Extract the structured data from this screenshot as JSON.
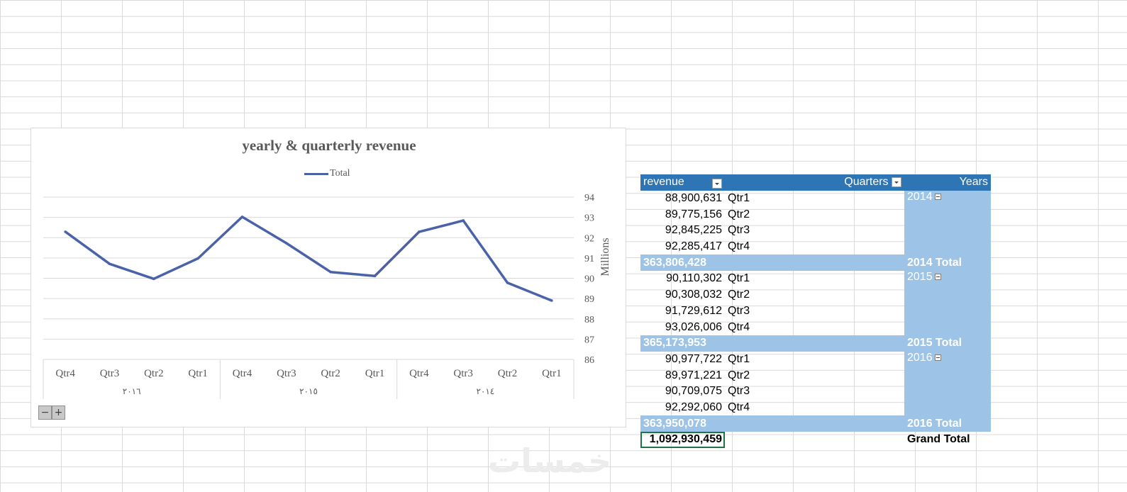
{
  "chart_data": {
    "type": "line",
    "title": "yearly & quarterly revenue",
    "legend": [
      "Total"
    ],
    "legend_position": "top",
    "ylabel": "Millions",
    "y_axis_position": "right",
    "ylim": [
      86,
      94
    ],
    "yticks": [
      "86",
      "87",
      "88",
      "89",
      "90",
      "91",
      "92",
      "93",
      "94"
    ],
    "grid": true,
    "x_direction": "right-to-left",
    "categories": [
      "Qtr4",
      "Qtr3",
      "Qtr2",
      "Qtr1",
      "Qtr4",
      "Qtr3",
      "Qtr2",
      "Qtr1",
      "Qtr4",
      "Qtr3",
      "Qtr2",
      "Qtr1"
    ],
    "groups": [
      {
        "label": "٢٠١٦",
        "count": 4
      },
      {
        "label": "٢٠١٥",
        "count": 4
      },
      {
        "label": "٢٠١٤",
        "count": 4
      }
    ],
    "series": [
      {
        "name": "Total",
        "color": "#4a62a8",
        "values": [
          92.29206,
          90.709075,
          89.971221,
          90.977722,
          93.026006,
          91.729612,
          90.308032,
          90.110302,
          92.285417,
          92.845225,
          89.775156,
          88.900631
        ]
      }
    ]
  },
  "chart_controls": {
    "collapse": "−",
    "expand": "+"
  },
  "pivot": {
    "headers": {
      "values": "revenue",
      "quarters": "Quarters",
      "years": "Years"
    },
    "years": [
      {
        "year": "2014",
        "rows": [
          {
            "value": "88,900,631",
            "quarter": "Qtr1"
          },
          {
            "value": "89,775,156",
            "quarter": "Qtr2"
          },
          {
            "value": "92,845,225",
            "quarter": "Qtr3"
          },
          {
            "value": "92,285,417",
            "quarter": "Qtr4"
          }
        ],
        "total": "363,806,428",
        "total_label": "2014 Total"
      },
      {
        "year": "2015",
        "rows": [
          {
            "value": "90,110,302",
            "quarter": "Qtr1"
          },
          {
            "value": "90,308,032",
            "quarter": "Qtr2"
          },
          {
            "value": "91,729,612",
            "quarter": "Qtr3"
          },
          {
            "value": "93,026,006",
            "quarter": "Qtr4"
          }
        ],
        "total": "365,173,953",
        "total_label": "2015 Total"
      },
      {
        "year": "2016",
        "rows": [
          {
            "value": "90,977,722",
            "quarter": "Qtr1"
          },
          {
            "value": "89,971,221",
            "quarter": "Qtr2"
          },
          {
            "value": "90,709,075",
            "quarter": "Qtr3"
          },
          {
            "value": "92,292,060",
            "quarter": "Qtr4"
          }
        ],
        "total": "363,950,078",
        "total_label": "2016 Total"
      }
    ],
    "grand_total": "1,092,930,459",
    "grand_total_label": "Grand Total"
  },
  "watermark": "خمسات"
}
